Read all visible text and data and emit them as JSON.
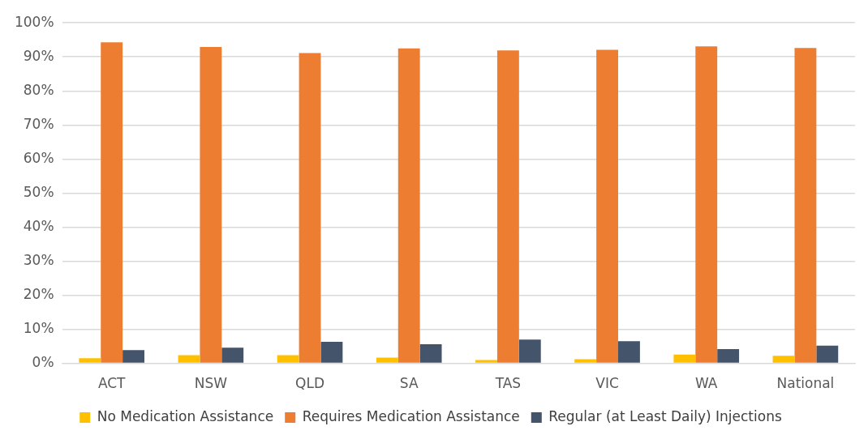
{
  "chart_data": {
    "type": "bar",
    "categories": [
      "ACT",
      "NSW",
      "QLD",
      "SA",
      "TAS",
      "VIC",
      "WA",
      "National"
    ],
    "series": [
      {
        "name": "No Medication Assistance",
        "color": "#ffc000",
        "values": [
          1.5,
          2.4,
          2.4,
          1.7,
          1.0,
          1.2,
          2.6,
          2.2
        ]
      },
      {
        "name": "Requires Medication Assistance",
        "color": "#ed7d31",
        "values": [
          94.3,
          92.9,
          91.1,
          92.5,
          91.9,
          92.1,
          93.1,
          92.6
        ]
      },
      {
        "name": "Regular (at Least Daily) Injections",
        "color": "#44546a",
        "values": [
          3.9,
          4.6,
          6.3,
          5.6,
          7.0,
          6.5,
          4.2,
          5.2
        ]
      }
    ],
    "ylim": [
      0,
      100
    ],
    "yticks": [
      {
        "value": 0,
        "label": "0%"
      },
      {
        "value": 10,
        "label": "10%"
      },
      {
        "value": 20,
        "label": "20%"
      },
      {
        "value": 30,
        "label": "30%"
      },
      {
        "value": 40,
        "label": "40%"
      },
      {
        "value": 50,
        "label": "50%"
      },
      {
        "value": 60,
        "label": "60%"
      },
      {
        "value": 70,
        "label": "70%"
      },
      {
        "value": 80,
        "label": "80%"
      },
      {
        "value": 90,
        "label": "90%"
      },
      {
        "value": 100,
        "label": "100%"
      }
    ],
    "grid": "y",
    "legend": "bottom"
  }
}
